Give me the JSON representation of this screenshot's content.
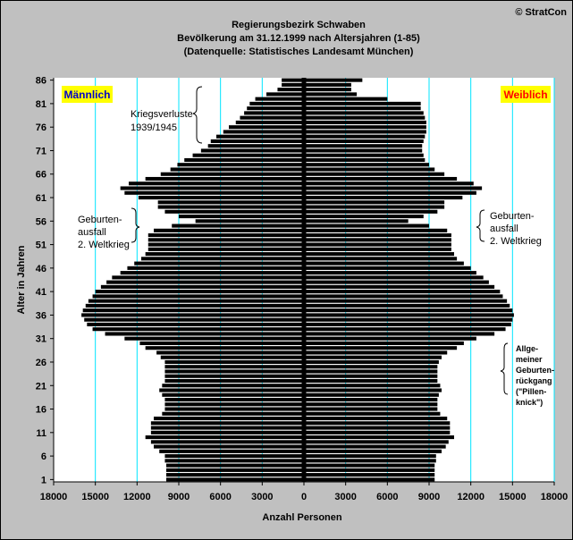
{
  "copyright": "© StratCon",
  "chart_data": {
    "type": "bar",
    "title": [
      "Regierungsbezirk Schwaben",
      "Bevölkerung am 31.12.1999 nach Altersjahren (1-85)",
      "(Datenquelle: Statistisches Landesamt München)"
    ],
    "xlabel": "Anzahl Personen",
    "ylabel": "Alter in Jahren",
    "xlim": [
      -18000,
      18000
    ],
    "x_ticks": [
      -18000,
      -15000,
      -12000,
      -9000,
      -6000,
      -3000,
      0,
      3000,
      6000,
      9000,
      12000,
      15000,
      18000
    ],
    "x_tick_labels": [
      "18000",
      "15000",
      "12000",
      "9000",
      "6000",
      "3000",
      "0",
      "3000",
      "6000",
      "9000",
      "12000",
      "15000",
      "18000"
    ],
    "y_ticks": [
      1,
      6,
      11,
      16,
      21,
      26,
      31,
      36,
      41,
      46,
      51,
      56,
      61,
      66,
      71,
      76,
      81,
      86
    ],
    "ages": [
      1,
      2,
      3,
      4,
      5,
      6,
      7,
      8,
      9,
      10,
      11,
      12,
      13,
      14,
      15,
      16,
      17,
      18,
      19,
      20,
      21,
      22,
      23,
      24,
      25,
      26,
      27,
      28,
      29,
      30,
      31,
      32,
      33,
      34,
      35,
      36,
      37,
      38,
      39,
      40,
      41,
      42,
      43,
      44,
      45,
      46,
      47,
      48,
      49,
      50,
      51,
      52,
      53,
      54,
      55,
      56,
      57,
      58,
      59,
      60,
      61,
      62,
      63,
      64,
      65,
      66,
      67,
      68,
      69,
      70,
      71,
      72,
      73,
      74,
      75,
      76,
      77,
      78,
      79,
      80,
      81,
      82,
      83,
      84,
      85,
      86
    ],
    "series": [
      {
        "name": "Männlich",
        "values": [
          9900,
          9900,
          9900,
          9900,
          10000,
          10000,
          10400,
          10800,
          11000,
          11400,
          11000,
          11000,
          11000,
          10800,
          10200,
          10000,
          10000,
          10000,
          10200,
          10400,
          10200,
          10000,
          10000,
          10000,
          10000,
          10000,
          10300,
          10600,
          11400,
          11800,
          12900,
          14300,
          15200,
          15600,
          15800,
          16000,
          15900,
          15700,
          15500,
          15200,
          15000,
          14600,
          14200,
          13800,
          13200,
          12700,
          12200,
          11700,
          11400,
          11200,
          11200,
          11200,
          11200,
          10800,
          9500,
          7800,
          9000,
          10000,
          10500,
          10500,
          11900,
          12900,
          13200,
          12600,
          11400,
          10300,
          9600,
          9100,
          8600,
          8000,
          7400,
          6900,
          6700,
          6300,
          5800,
          5400,
          4900,
          4600,
          4300,
          4100,
          3900,
          3500,
          2700,
          1900,
          1600,
          1600
        ]
      },
      {
        "name": "Weiblich",
        "values": [
          9400,
          9400,
          9400,
          9400,
          9500,
          9500,
          9900,
          10200,
          10400,
          10800,
          10500,
          10500,
          10500,
          10300,
          9800,
          9600,
          9600,
          9600,
          9700,
          9900,
          9800,
          9600,
          9600,
          9600,
          9600,
          9700,
          9900,
          10300,
          11000,
          11500,
          12400,
          13700,
          14500,
          14900,
          15000,
          15100,
          15000,
          14800,
          14600,
          14300,
          14100,
          13700,
          13300,
          12900,
          12400,
          12000,
          11500,
          11000,
          10800,
          10600,
          10600,
          10600,
          10600,
          10300,
          9000,
          7500,
          8600,
          9600,
          10100,
          10100,
          11400,
          12400,
          12800,
          12200,
          11000,
          10100,
          9400,
          9000,
          8700,
          8600,
          8500,
          8500,
          8600,
          8700,
          8800,
          8800,
          8800,
          8700,
          8600,
          8400,
          8400,
          6000,
          3800,
          3400,
          3400,
          4200
        ]
      }
    ],
    "legend": [
      {
        "label": "Männlich",
        "position": "top-left",
        "text_color": "#0000cc",
        "background": "#ffff00"
      },
      {
        "label": "Weiblich",
        "position": "top-right",
        "text_color": "#ff0000",
        "background": "#ffff00"
      }
    ],
    "annotations": [
      {
        "text": "Kriegsverluste 1939/1945",
        "lines": [
          "Kriegsverluste",
          "1939/1945"
        ],
        "side": "male"
      },
      {
        "text": "Geburten- ausfall 2. Weltkrieg",
        "lines": [
          "Geburten-",
          "ausfall",
          "2. Weltkrieg"
        ],
        "side": "male"
      },
      {
        "text": "Geburten- ausfall 2. Weltkrieg",
        "lines": [
          "Geburten-",
          "ausfall",
          "2. Weltkrieg"
        ],
        "side": "female"
      },
      {
        "text": "Allge- meiner Geburten- rückgang (\"Pillen- knick\")",
        "lines": [
          "Allge-",
          "meiner",
          "Geburten-",
          "rückgang",
          "(\"Pillen-",
          "knick\")"
        ],
        "side": "female"
      }
    ],
    "grid": true,
    "colors": {
      "background": "#c0c0c0",
      "plot_background": "#ffffff",
      "grid": "#00e5ff",
      "bars": "#000000",
      "legend_bg": "#ffff00",
      "male_text": "#0000cc",
      "female_text": "#ff0000"
    }
  }
}
